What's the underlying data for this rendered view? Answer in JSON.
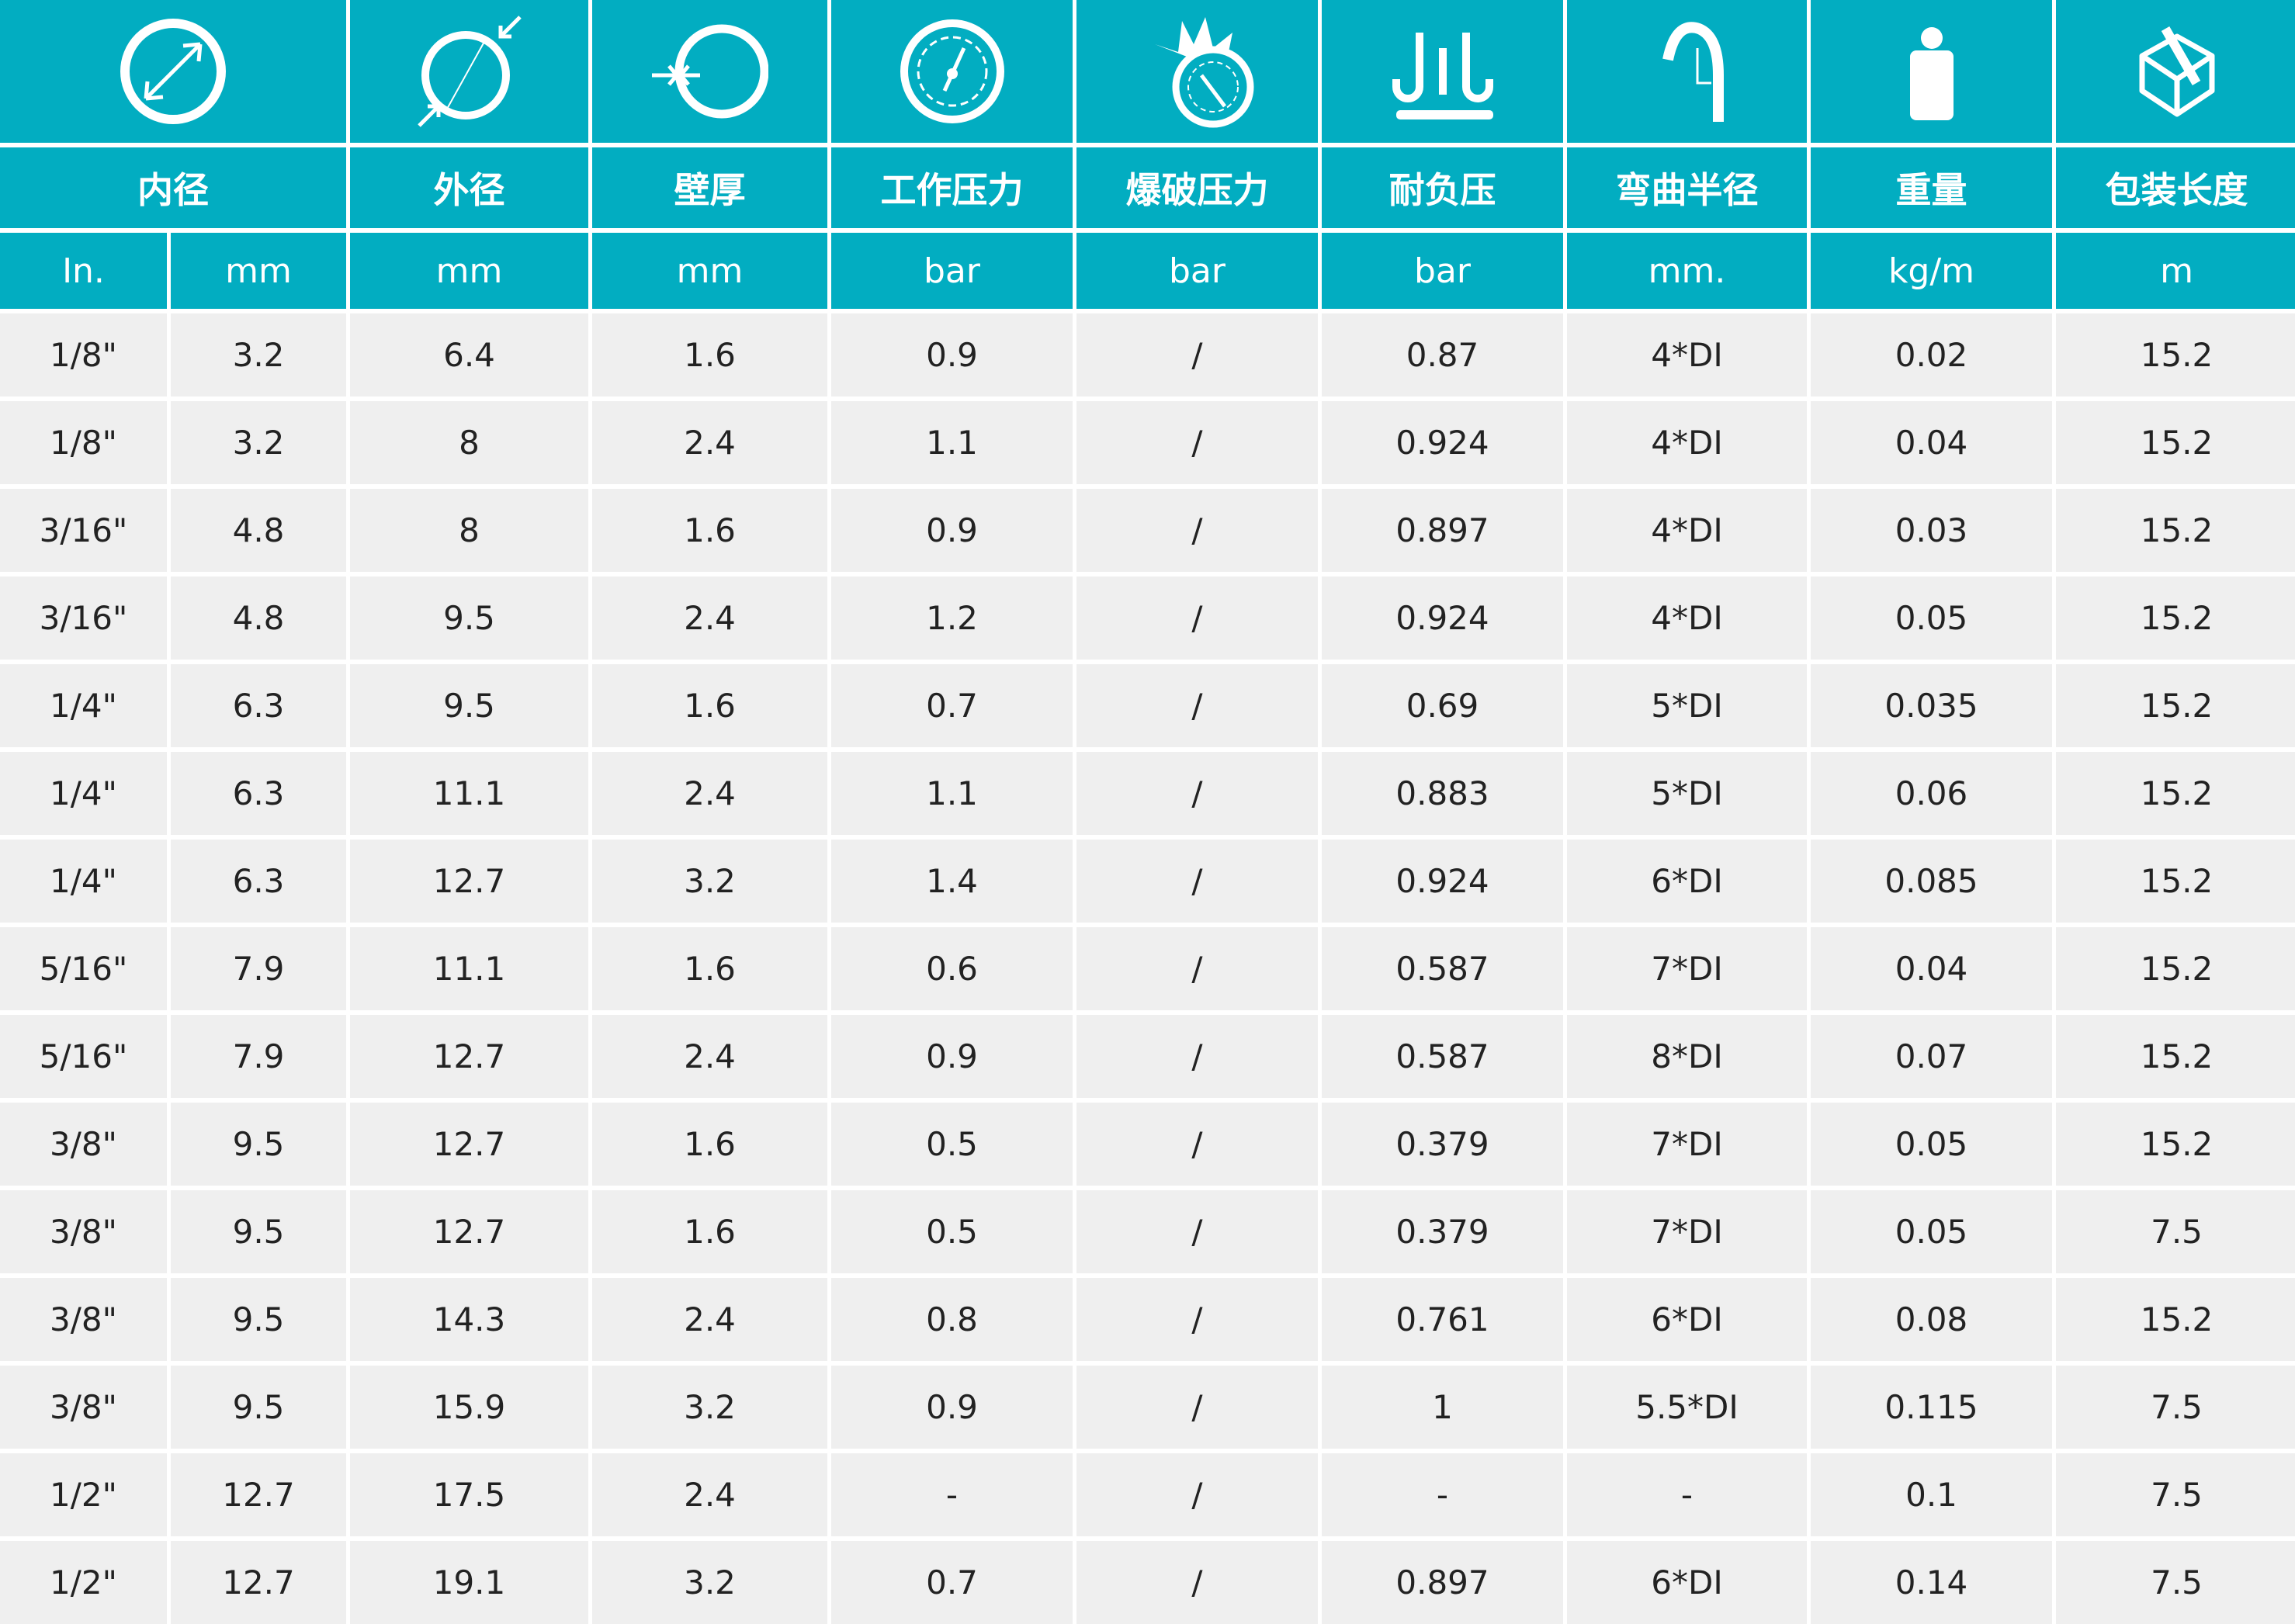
{
  "colors": {
    "header": "#02adc1",
    "row": "#efefef"
  },
  "columns": [
    {
      "icon": "inner-diameter-icon",
      "title": "内径",
      "units": [
        "In.",
        "mm"
      ]
    },
    {
      "icon": "outer-diameter-icon",
      "title": "外径",
      "units": [
        "mm"
      ]
    },
    {
      "icon": "wall-thickness-icon",
      "title": "壁厚",
      "units": [
        "mm"
      ]
    },
    {
      "icon": "pressure-gauge-icon",
      "title": "工作压力",
      "units": [
        "bar"
      ]
    },
    {
      "icon": "burst-gauge-icon",
      "title": "爆破压力",
      "units": [
        "bar"
      ]
    },
    {
      "icon": "vacuum-icon",
      "title": "耐负压",
      "units": [
        "bar"
      ]
    },
    {
      "icon": "bend-radius-icon",
      "title": "弯曲半径",
      "units": [
        "mm."
      ]
    },
    {
      "icon": "weight-icon",
      "title": "重量",
      "units": [
        "kg/m"
      ]
    },
    {
      "icon": "package-box-icon",
      "title": "包装长度",
      "units": [
        "m"
      ]
    }
  ],
  "rows": [
    [
      "1/8\"",
      "3.2",
      "6.4",
      "1.6",
      "0.9",
      "/",
      "0.87",
      "4*DI",
      "0.02",
      "15.2"
    ],
    [
      "1/8\"",
      "3.2",
      "8",
      "2.4",
      "1.1",
      "/",
      "0.924",
      "4*DI",
      "0.04",
      "15.2"
    ],
    [
      "3/16\"",
      "4.8",
      "8",
      "1.6",
      "0.9",
      "/",
      "0.897",
      "4*DI",
      "0.03",
      "15.2"
    ],
    [
      "3/16\"",
      "4.8",
      "9.5",
      "2.4",
      "1.2",
      "/",
      "0.924",
      "4*DI",
      "0.05",
      "15.2"
    ],
    [
      "1/4\"",
      "6.3",
      "9.5",
      "1.6",
      "0.7",
      "/",
      "0.69",
      "5*DI",
      "0.035",
      "15.2"
    ],
    [
      "1/4\"",
      "6.3",
      "11.1",
      "2.4",
      "1.1",
      "/",
      "0.883",
      "5*DI",
      "0.06",
      "15.2"
    ],
    [
      "1/4\"",
      "6.3",
      "12.7",
      "3.2",
      "1.4",
      "/",
      "0.924",
      "6*DI",
      "0.085",
      "15.2"
    ],
    [
      "5/16\"",
      "7.9",
      "11.1",
      "1.6",
      "0.6",
      "/",
      "0.587",
      "7*DI",
      "0.04",
      "15.2"
    ],
    [
      "5/16\"",
      "7.9",
      "12.7",
      "2.4",
      "0.9",
      "/",
      "0.587",
      "8*DI",
      "0.07",
      "15.2"
    ],
    [
      "3/8\"",
      "9.5",
      "12.7",
      "1.6",
      "0.5",
      "/",
      "0.379",
      "7*DI",
      "0.05",
      "15.2"
    ],
    [
      "3/8\"",
      "9.5",
      "12.7",
      "1.6",
      "0.5",
      "/",
      "0.379",
      "7*DI",
      "0.05",
      "7.5"
    ],
    [
      "3/8\"",
      "9.5",
      "14.3",
      "2.4",
      "0.8",
      "/",
      "0.761",
      "6*DI",
      "0.08",
      "15.2"
    ],
    [
      "3/8\"",
      "9.5",
      "15.9",
      "3.2",
      "0.9",
      "/",
      "1",
      "5.5*DI",
      "0.115",
      "7.5"
    ],
    [
      "1/2\"",
      "12.7",
      "17.5",
      "2.4",
      "-",
      "/",
      "-",
      "-",
      "0.1",
      "7.5"
    ],
    [
      "1/2\"",
      "12.7",
      "19.1",
      "3.2",
      "0.7",
      "/",
      "0.897",
      "6*DI",
      "0.14",
      "7.5"
    ]
  ]
}
